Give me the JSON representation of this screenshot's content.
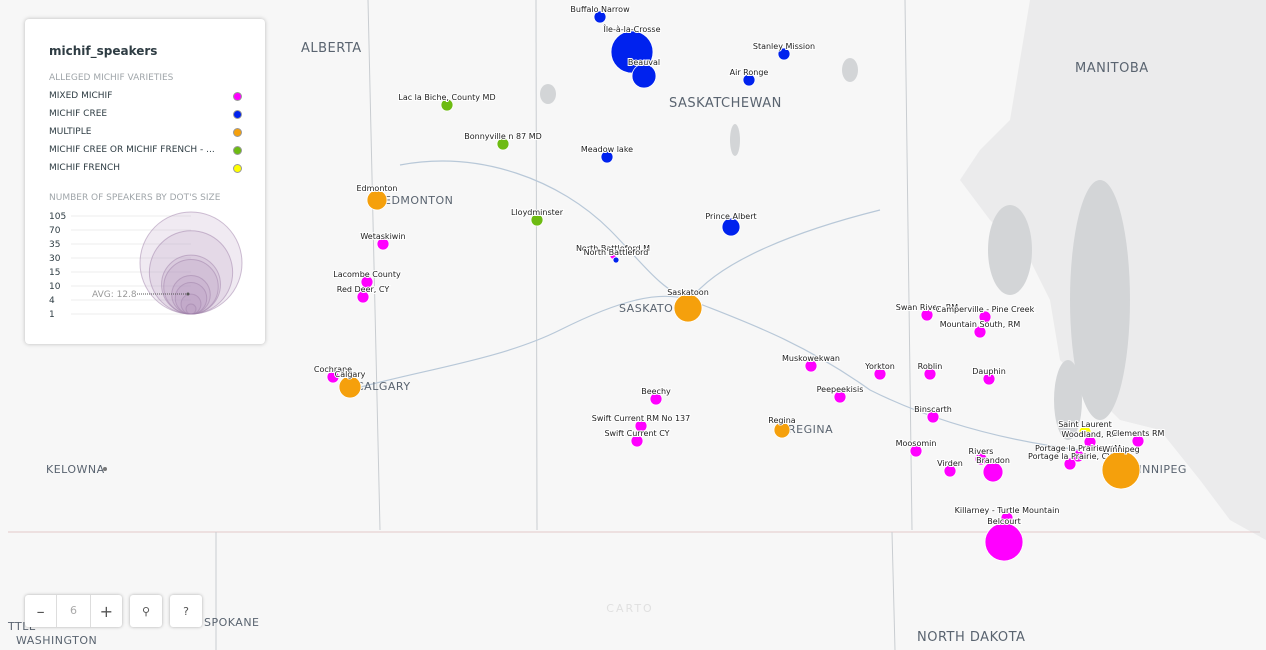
{
  "map": {
    "place_labels": [
      "ALBERTA",
      "SASKATCHEWAN",
      "MANITOBA",
      "EDMONTON",
      "CALGARY",
      "SASKATOON",
      "REGINA",
      "WINNIPEG",
      "KELOWNA",
      "SPOKANE",
      "NORTH DAKOTA",
      "WASHINGTON",
      "TTLE"
    ],
    "points": [
      {
        "name": "Buffalo Narrow",
        "variety": 1
      },
      {
        "name": "Île-à-la-Crosse",
        "variety": 1
      },
      {
        "name": "Beauval",
        "variety": 1
      },
      {
        "name": "Stanley Mission",
        "variety": 1
      },
      {
        "name": "Air Ronge",
        "variety": 1
      },
      {
        "name": "Lac la Biche, County MD",
        "variety": 3
      },
      {
        "name": "Bonnyville n 87 MD",
        "variety": 3
      },
      {
        "name": "Meadow lake",
        "variety": 1
      },
      {
        "name": "Edmonton",
        "variety": 2
      },
      {
        "name": "Lloydminster",
        "variety": 3
      },
      {
        "name": "Prince Albert",
        "variety": 1
      },
      {
        "name": "North Battleford M",
        "variety": 0
      },
      {
        "name": "North Battleford",
        "variety": 1
      },
      {
        "name": "Wetaskiwin",
        "variety": 0
      },
      {
        "name": "Lacombe County",
        "variety": 0
      },
      {
        "name": "Red Deer, CY",
        "variety": 0
      },
      {
        "name": "Saskatoon",
        "variety": 2
      },
      {
        "name": "Swan River, RM",
        "variety": 0
      },
      {
        "name": "Camperville - Pine Creek",
        "variety": 0
      },
      {
        "name": "Mountain South, RM",
        "variety": 0
      },
      {
        "name": "Muskowekwan",
        "variety": 0
      },
      {
        "name": "Yorkton",
        "variety": 0
      },
      {
        "name": "Roblin",
        "variety": 0
      },
      {
        "name": "Dauphin",
        "variety": 0
      },
      {
        "name": "Peepeekisis",
        "variety": 0
      },
      {
        "name": "Cochrane",
        "variety": 0
      },
      {
        "name": "Calgary",
        "variety": 2
      },
      {
        "name": "Beechy",
        "variety": 0
      },
      {
        "name": "Binscarth",
        "variety": 0
      },
      {
        "name": "Swift Current RM No 137",
        "variety": 0
      },
      {
        "name": "Swift Current CY",
        "variety": 0
      },
      {
        "name": "Regina",
        "variety": 2
      },
      {
        "name": "Saint Laurent",
        "variety": 4
      },
      {
        "name": "Woodland, RM",
        "variety": 0
      },
      {
        "name": "Clements RM",
        "variety": 0
      },
      {
        "name": "Moosomin",
        "variety": 0
      },
      {
        "name": "Rivers",
        "variety": 0
      },
      {
        "name": "Portage la Prairie, RM",
        "variety": 0
      },
      {
        "name": "Portage la Prairie, CY",
        "variety": 0
      },
      {
        "name": "Winnipeg",
        "variety": 2
      },
      {
        "name": "Virden",
        "variety": 0
      },
      {
        "name": "Brandon",
        "variety": 0
      },
      {
        "name": "Killarney - Turtle Mountain",
        "variety": 0
      },
      {
        "name": "Belcourt",
        "variety": 0
      }
    ]
  },
  "legend": {
    "title": "michif_speakers",
    "varieties_heading": "ALLEGED MICHIF VARIETIES",
    "varieties": [
      {
        "label": "MIXED MICHIF",
        "color": "#ff00ff"
      },
      {
        "label": "MICHIF CREE",
        "color": "#0022ee"
      },
      {
        "label": "MULTIPLE",
        "color": "#f5a00c"
      },
      {
        "label": "MICHIF CREE OR MICHIF FRENCH - ...",
        "color": "#6dbb12"
      },
      {
        "label": "MICHIF FRENCH",
        "color": "#ffff00"
      }
    ],
    "size_heading": "NUMBER OF SPEAKERS BY DOT'S SIZE",
    "size_ticks": [
      105,
      70,
      35,
      30,
      15,
      10,
      4,
      1
    ],
    "average": "AVG: 12.8"
  },
  "controls": {
    "zoom": "6",
    "help": "?",
    "attribution": "CARTO"
  }
}
